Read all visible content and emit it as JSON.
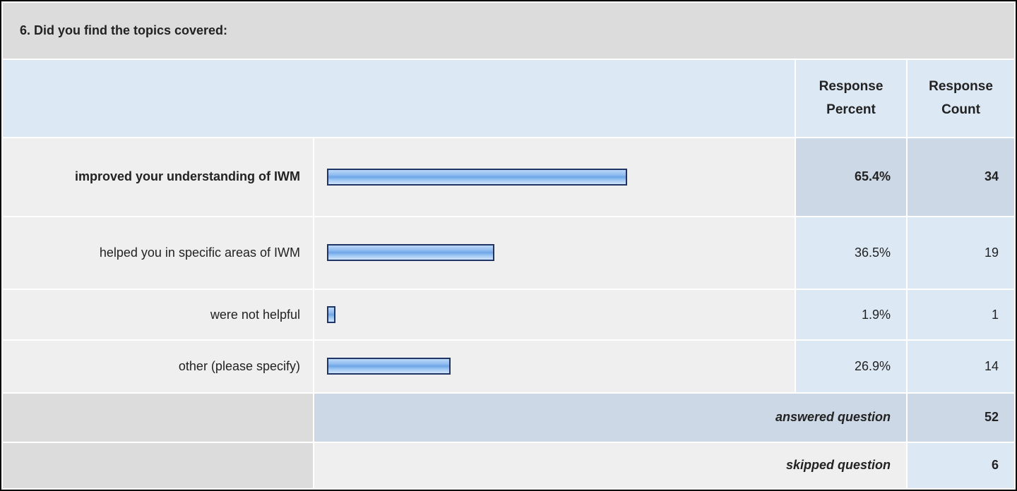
{
  "question": "6. Did you find the topics covered:",
  "columns": [
    "Response Percent",
    "Response Count"
  ],
  "rows": [
    {
      "label": "improved your understanding of IWM",
      "percent": 65.4,
      "percent_label": "65.4%",
      "count": 34
    },
    {
      "label": "helped you in specific areas of IWM",
      "percent": 36.5,
      "percent_label": "36.5%",
      "count": 19
    },
    {
      "label": "were not helpful",
      "percent": 1.9,
      "percent_label": "1.9%",
      "count": 1
    },
    {
      "label": "other (please specify)",
      "percent": 26.9,
      "percent_label": "26.9%",
      "count": 14
    }
  ],
  "answered": {
    "label": "answered question",
    "count": 52
  },
  "skipped": {
    "label": "skipped question",
    "count": 6
  }
}
